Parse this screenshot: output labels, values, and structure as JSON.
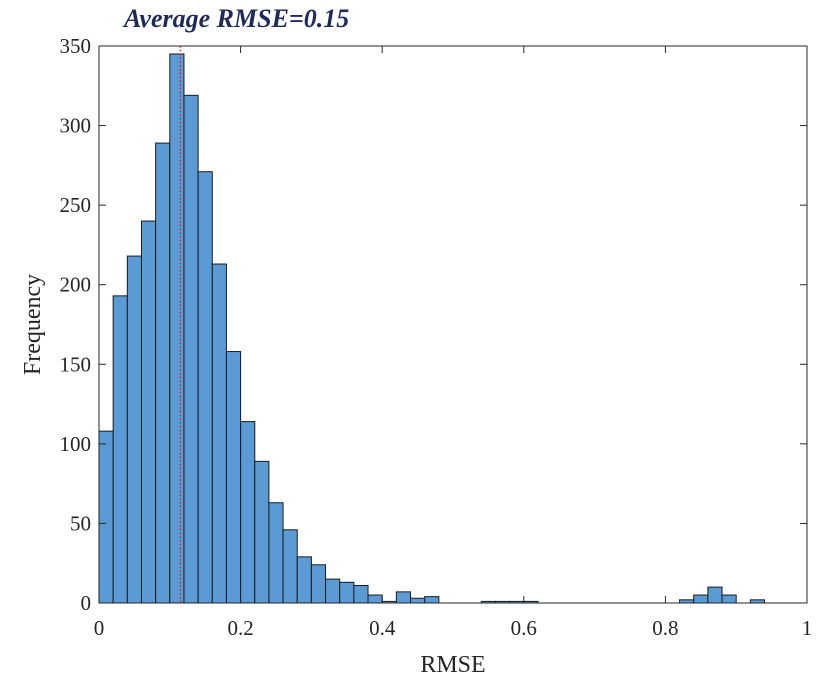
{
  "chart_data": {
    "type": "bar",
    "title": "Average RMSE=0.15",
    "xlabel": "RMSE",
    "ylabel": "Frequency",
    "xlim": [
      0,
      1
    ],
    "ylim": [
      0,
      350
    ],
    "xticks": [
      "0",
      "0.2",
      "0.4",
      "0.6",
      "0.8",
      "1"
    ],
    "yticks": [
      "0",
      "50",
      "100",
      "150",
      "200",
      "250",
      "300",
      "350"
    ],
    "bin_width": 0.02,
    "bins": [
      {
        "x0": 0.0,
        "value": 108
      },
      {
        "x0": 0.02,
        "value": 193
      },
      {
        "x0": 0.04,
        "value": 218
      },
      {
        "x0": 0.06,
        "value": 240
      },
      {
        "x0": 0.08,
        "value": 289
      },
      {
        "x0": 0.1,
        "value": 345
      },
      {
        "x0": 0.12,
        "value": 319
      },
      {
        "x0": 0.14,
        "value": 271
      },
      {
        "x0": 0.16,
        "value": 213
      },
      {
        "x0": 0.18,
        "value": 158
      },
      {
        "x0": 0.2,
        "value": 114
      },
      {
        "x0": 0.22,
        "value": 89
      },
      {
        "x0": 0.24,
        "value": 63
      },
      {
        "x0": 0.26,
        "value": 46
      },
      {
        "x0": 0.28,
        "value": 29
      },
      {
        "x0": 0.3,
        "value": 24
      },
      {
        "x0": 0.32,
        "value": 15
      },
      {
        "x0": 0.34,
        "value": 13
      },
      {
        "x0": 0.36,
        "value": 11
      },
      {
        "x0": 0.38,
        "value": 5
      },
      {
        "x0": 0.4,
        "value": 1
      },
      {
        "x0": 0.42,
        "value": 7
      },
      {
        "x0": 0.44,
        "value": 3
      },
      {
        "x0": 0.46,
        "value": 4
      },
      {
        "x0": 0.54,
        "value": 1
      },
      {
        "x0": 0.56,
        "value": 1
      },
      {
        "x0": 0.58,
        "value": 1
      },
      {
        "x0": 0.6,
        "value": 1
      },
      {
        "x0": 0.82,
        "value": 2
      },
      {
        "x0": 0.84,
        "value": 5
      },
      {
        "x0": 0.86,
        "value": 10
      },
      {
        "x0": 0.88,
        "value": 5
      },
      {
        "x0": 0.92,
        "value": 2
      }
    ],
    "reference_line": {
      "x": 0.115,
      "style": "dotted",
      "color": "#d62728"
    },
    "bar_color": "#5b9bd5",
    "bar_edge_color": "#1a1a1a",
    "title_color": "#1f2a5a",
    "grid": false,
    "legend": "none"
  }
}
